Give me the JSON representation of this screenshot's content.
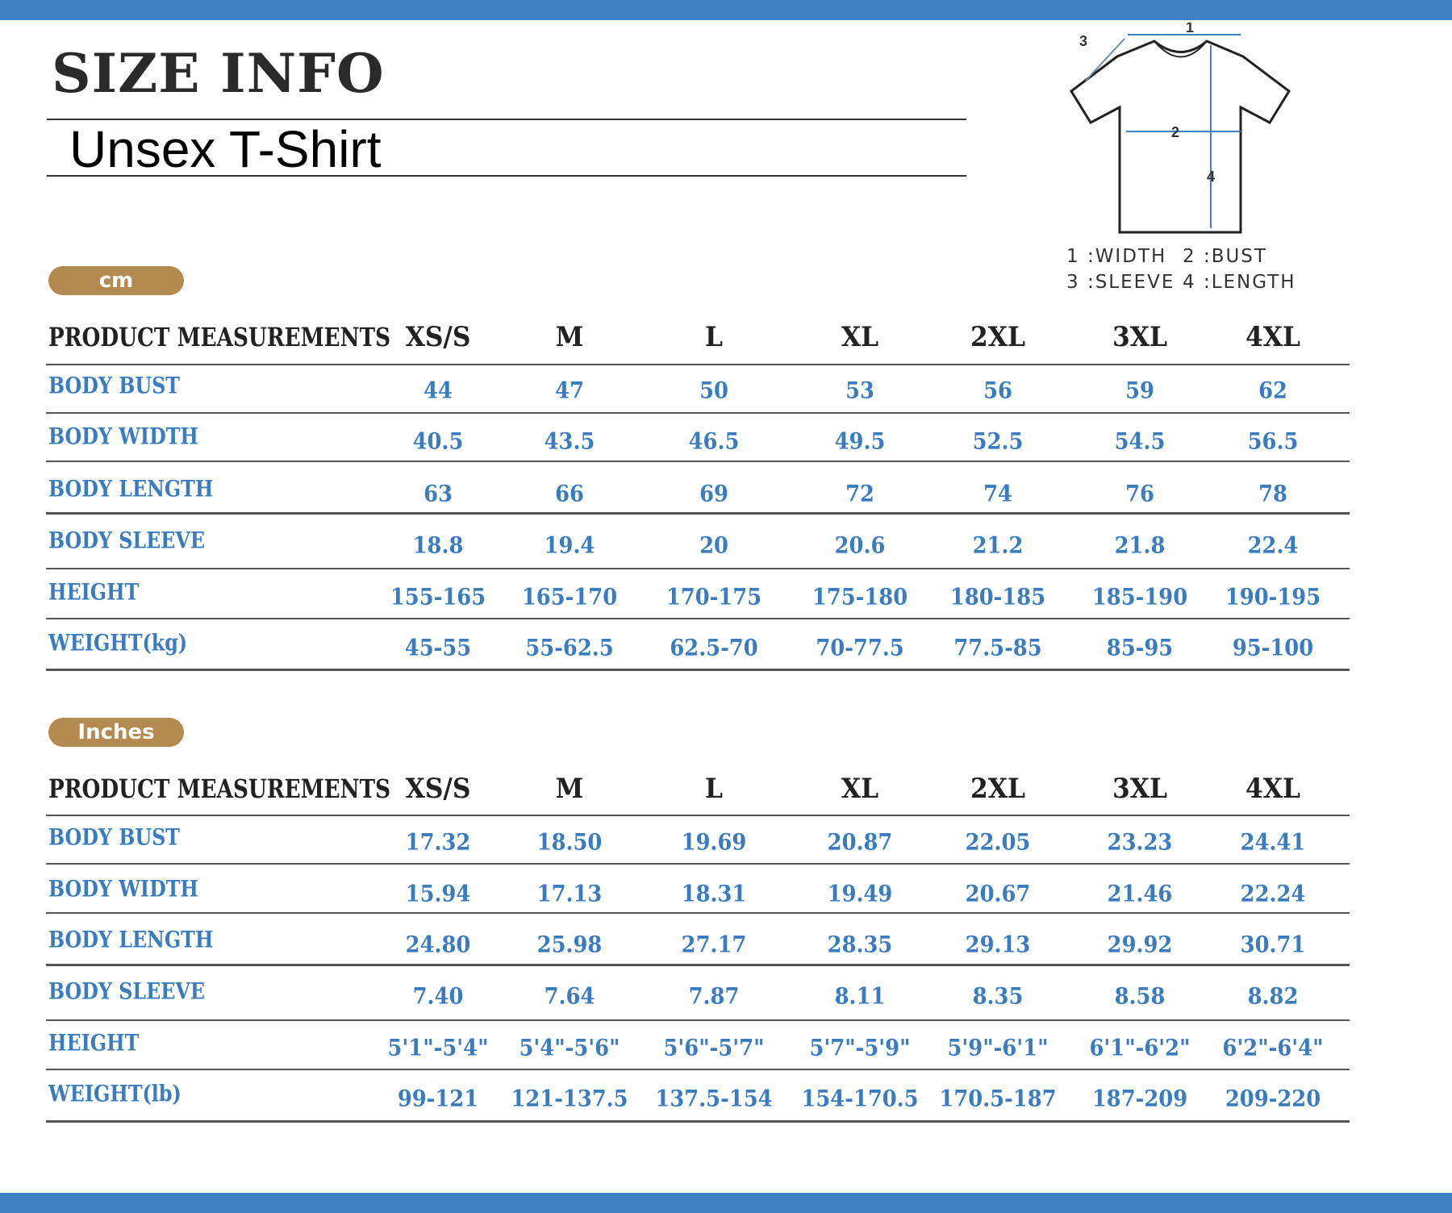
{
  "header": {
    "title": "SIZE INFO",
    "subtitle": "Unsex T-Shirt"
  },
  "diagram": {
    "marks": [
      "1",
      "2",
      "3",
      "4"
    ],
    "legend": [
      "1 :WIDTH",
      "2 :BUST",
      "3 :SLEEVE",
      "4 :LENGTH"
    ]
  },
  "colors": {
    "accent": "#3f82c4",
    "badge": "#b58a50",
    "value_text": "#3a7cbf"
  },
  "sizes": [
    "XS/S",
    "M",
    "L",
    "XL",
    "2XL",
    "3XL",
    "4XL"
  ],
  "tables": [
    {
      "unit": "cm",
      "header_label": "PRODUCT MEASUREMENTS",
      "rows": [
        {
          "label": "BODY BUST",
          "values": [
            "44",
            "47",
            "50",
            "53",
            "56",
            "59",
            "62"
          ]
        },
        {
          "label": "BODY WIDTH",
          "values": [
            "40.5",
            "43.5",
            "46.5",
            "49.5",
            "52.5",
            "54.5",
            "56.5"
          ]
        },
        {
          "label": "BODY LENGTH",
          "values": [
            "63",
            "66",
            "69",
            "72",
            "74",
            "76",
            "78"
          ]
        },
        {
          "label": "BODY SLEEVE",
          "values": [
            "18.8",
            "19.4",
            "20",
            "20.6",
            "21.2",
            "21.8",
            "22.4"
          ]
        },
        {
          "label": "HEIGHT",
          "values": [
            "155-165",
            "165-170",
            "170-175",
            "175-180",
            "180-185",
            "185-190",
            "190-195"
          ]
        },
        {
          "label": "WEIGHT(kg)",
          "values": [
            "45-55",
            "55-62.5",
            "62.5-70",
            "70-77.5",
            "77.5-85",
            "85-95",
            "95-100"
          ]
        }
      ]
    },
    {
      "unit": "Inches",
      "header_label": "PRODUCT MEASUREMENTS",
      "rows": [
        {
          "label": "BODY BUST",
          "values": [
            "17.32",
            "18.50",
            "19.69",
            "20.87",
            "22.05",
            "23.23",
            "24.41"
          ]
        },
        {
          "label": "BODY WIDTH",
          "values": [
            "15.94",
            "17.13",
            "18.31",
            "19.49",
            "20.67",
            "21.46",
            "22.24"
          ]
        },
        {
          "label": "BODY LENGTH",
          "values": [
            "24.80",
            "25.98",
            "27.17",
            "28.35",
            "29.13",
            "29.92",
            "30.71"
          ]
        },
        {
          "label": "BODY SLEEVE",
          "values": [
            "7.40",
            "7.64",
            "7.87",
            "8.11",
            "8.35",
            "8.58",
            "8.82"
          ]
        },
        {
          "label": "HEIGHT",
          "values": [
            "5'1\"-5'4\"",
            "5'4\"-5'6\"",
            "5'6\"-5'7\"",
            "5'7\"-5'9\"",
            "5'9\"-6'1\"",
            "6'1\"-6'2\"",
            "6'2\"-6'4\""
          ]
        },
        {
          "label": "WEIGHT(lb)",
          "values": [
            "99-121",
            "121-137.5",
            "137.5-154",
            "154-170.5",
            "170.5-187",
            "187-209",
            "209-220"
          ]
        }
      ]
    }
  ]
}
